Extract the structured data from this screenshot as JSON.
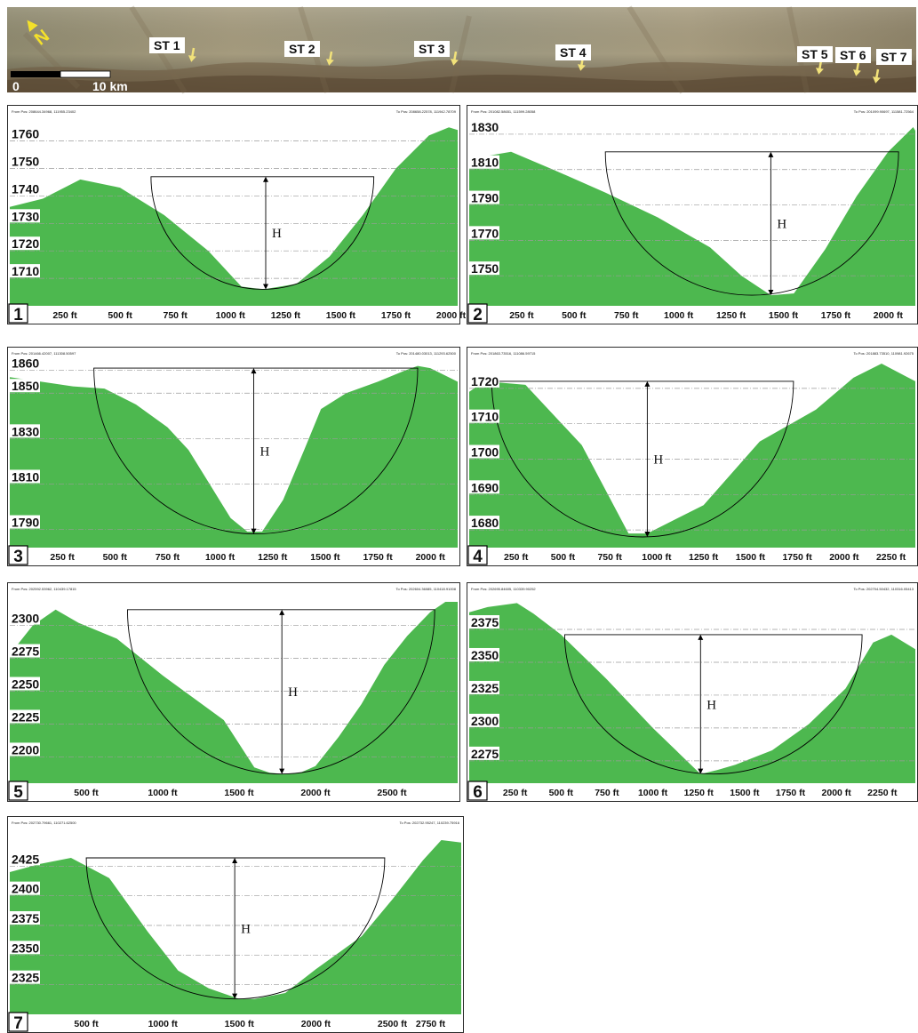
{
  "banner": {
    "scale_start": "0",
    "scale_end": "10 km",
    "north_label": "N",
    "colors": {
      "arrow": "#f2e27a",
      "north": "#f4e12a"
    },
    "stations": [
      "ST 1",
      "ST 2",
      "ST 3",
      "ST 4",
      "ST 5",
      "ST 6",
      "ST 7"
    ]
  },
  "colors": {
    "terrain": "#4db84f",
    "grid": "#9a9a9a"
  },
  "chart_data": [
    {
      "type": "area",
      "panel": "1",
      "h_label": "H",
      "from_pos": "From Pos: 208644.34968, 111955.23402",
      "to_pos": "To Pos: 208658.22578, 111942.78709",
      "xlim": [
        0,
        2030
      ],
      "ylim": [
        1700,
        1767
      ],
      "yticks": [
        1710,
        1720,
        1730,
        1740,
        1750,
        1760
      ],
      "xticks": [
        250,
        500,
        750,
        1000,
        1250,
        1500,
        1750,
        2000
      ],
      "xtick_labels": [
        "250 ft",
        "500 ft",
        "750 ft",
        "1000 ft",
        "1250 ft",
        "1500 ft",
        "1750 ft",
        "2000 ft"
      ],
      "x": [
        0,
        150,
        320,
        500,
        700,
        900,
        1050,
        1150,
        1300,
        1450,
        1600,
        1750,
        1900,
        1990,
        2030
      ],
      "y": [
        1736,
        1739,
        1746,
        1743,
        1733,
        1720,
        1707,
        1706,
        1708,
        1718,
        1733,
        1750,
        1762,
        1765,
        1764
      ],
      "bowl": {
        "x_left": 640,
        "x_right": 1650,
        "top": 1747,
        "bottom": 1706,
        "h_x": 1160
      }
    },
    {
      "type": "area",
      "panel": "2",
      "h_label": "H",
      "from_pos": "From Pos: 201082.58651, 111599.28058",
      "to_pos": "To Pos: 201099.90697, 111581.72564",
      "xlim": [
        0,
        2130
      ],
      "ylim": [
        1733,
        1837
      ],
      "yticks": [
        1750,
        1770,
        1790,
        1810,
        1830
      ],
      "xticks": [
        250,
        500,
        750,
        1000,
        1250,
        1500,
        1750,
        2000
      ],
      "xtick_labels": [
        "250 ft",
        "500 ft",
        "750 ft",
        "1000 ft",
        "1250 ft",
        "1500 ft",
        "1750 ft",
        "2000 ft"
      ],
      "x": [
        0,
        100,
        200,
        400,
        650,
        900,
        1150,
        1300,
        1440,
        1550,
        1700,
        1850,
        2000,
        2120,
        2130
      ],
      "y": [
        1813,
        1818,
        1820,
        1810,
        1797,
        1783,
        1766,
        1750,
        1739,
        1740,
        1765,
        1795,
        1820,
        1834,
        1832
      ],
      "bowl": {
        "x_left": 650,
        "x_right": 2050,
        "top": 1820,
        "bottom": 1739,
        "h_x": 1440
      }
    },
    {
      "type": "area",
      "panel": "3",
      "h_label": "H",
      "from_pos": "From Pos: 201466.42007, 111308.50597",
      "to_pos": "To Pos: 201480.03013, 111293.62500",
      "xlim": [
        0,
        2130
      ],
      "ylim": [
        1782,
        1863
      ],
      "yticks": [
        1790,
        1810,
        1830,
        1850,
        1860
      ],
      "xticks": [
        250,
        500,
        750,
        1000,
        1250,
        1500,
        1750,
        2000
      ],
      "xtick_labels": [
        "250 ft",
        "500 ft",
        "750 ft",
        "1000 ft",
        "1250 ft",
        "1500 ft",
        "1750 ft",
        "2000 ft"
      ],
      "x": [
        0,
        150,
        300,
        450,
        600,
        750,
        850,
        950,
        1050,
        1130,
        1200,
        1300,
        1400,
        1480,
        1600,
        1750,
        1880,
        1940,
        2000,
        2130
      ],
      "y": [
        1857,
        1855,
        1853,
        1852,
        1845,
        1835,
        1825,
        1810,
        1795,
        1789,
        1789,
        1803,
        1825,
        1843,
        1850,
        1855,
        1860,
        1862,
        1861,
        1855
      ],
      "bowl": {
        "x_left": 400,
        "x_right": 1940,
        "top": 1861,
        "bottom": 1788,
        "h_x": 1160
      }
    },
    {
      "type": "area",
      "panel": "4",
      "h_label": "H",
      "from_pos": "From Pos: 201863.73516, 111086.59715",
      "to_pos": "To Pos: 201883.73510, 110981.92675",
      "xlim": [
        0,
        2380
      ],
      "ylim": [
        1675,
        1727
      ],
      "yticks": [
        1680,
        1690,
        1700,
        1710,
        1720
      ],
      "xticks": [
        250,
        500,
        750,
        1000,
        1250,
        1500,
        1750,
        2000,
        2250
      ],
      "xtick_labels": [
        "250 ft",
        "500 ft",
        "750 ft",
        "1000 ft",
        "1250 ft",
        "1500 ft",
        "1750 ft",
        "2000 ft",
        "2250 ft"
      ],
      "x": [
        0,
        80,
        300,
        600,
        850,
        950,
        1250,
        1550,
        1850,
        2050,
        2200,
        2380
      ],
      "y": [
        1719,
        1722,
        1721,
        1704,
        1679,
        1679,
        1687,
        1705,
        1714,
        1723,
        1727,
        1722
      ],
      "bowl": {
        "x_left": 120,
        "x_right": 1730,
        "top": 1722,
        "bottom": 1678,
        "h_x": 950
      }
    },
    {
      "type": "area",
      "panel": "5",
      "h_label": "H",
      "from_pos": "From Pos: 202592.53962, 110439.17815",
      "to_pos": "To Pos: 202604.36085, 110418.91008",
      "xlim": [
        0,
        2930
      ],
      "ylim": [
        2180,
        2320
      ],
      "yticks": [
        2200,
        2225,
        2250,
        2275,
        2300
      ],
      "xticks": [
        500,
        1000,
        1500,
        2000,
        2500
      ],
      "xtick_labels": [
        "500 ft",
        "1000 ft",
        "1500 ft",
        "2000 ft",
        "2500 ft"
      ],
      "x": [
        0,
        150,
        300,
        450,
        700,
        1000,
        1200,
        1400,
        1500,
        1600,
        1700,
        1800,
        1900,
        2000,
        2150,
        2300,
        2450,
        2600,
        2750,
        2850,
        2930
      ],
      "y": [
        2278,
        2300,
        2312,
        2302,
        2290,
        2262,
        2245,
        2228,
        2210,
        2192,
        2188,
        2187,
        2188,
        2193,
        2215,
        2240,
        2270,
        2292,
        2310,
        2318,
        2318
      ],
      "bowl": {
        "x_left": 770,
        "x_right": 2780,
        "top": 2312,
        "bottom": 2187,
        "h_x": 1780
      }
    },
    {
      "type": "area",
      "panel": "6",
      "h_label": "H",
      "from_pos": "From Pos: 202695.84605, 110339.90252",
      "to_pos": "To Pos: 202704.50432, 110316.05413",
      "xlim": [
        0,
        2430
      ],
      "ylim": [
        2258,
        2398
      ],
      "yticks": [
        2275,
        2300,
        2325,
        2350,
        2375
      ],
      "xticks": [
        250,
        500,
        750,
        1000,
        1250,
        1500,
        1750,
        2000,
        2250
      ],
      "xtick_labels": [
        "250 ft",
        "500 ft",
        "750 ft",
        "1000 ft",
        "1250 ft",
        "1500 ft",
        "1750 ft",
        "2000 ft",
        "2250 ft"
      ],
      "x": [
        0,
        100,
        260,
        350,
        500,
        750,
        1000,
        1260,
        1350,
        1450,
        1650,
        1850,
        2050,
        2200,
        2300,
        2430
      ],
      "y": [
        2388,
        2392,
        2395,
        2387,
        2371,
        2337,
        2300,
        2265,
        2268,
        2272,
        2283,
        2303,
        2330,
        2365,
        2371,
        2360
      ],
      "bowl": {
        "x_left": 520,
        "x_right": 2140,
        "top": 2371,
        "bottom": 2265,
        "h_x": 1260
      }
    },
    {
      "type": "area",
      "panel": "7",
      "h_label": "H",
      "from_pos": "From Pos: 202730.79661, 110271.62500",
      "to_pos": "To Pos: 202732.95247, 110239.75916",
      "xlim": [
        0,
        2950
      ],
      "ylim": [
        2300,
        2453
      ],
      "yticks": [
        2325,
        2350,
        2375,
        2400,
        2425
      ],
      "xticks": [
        500,
        1000,
        1500,
        2000,
        2500,
        2750
      ],
      "xtick_labels": [
        "500 ft",
        "1000 ft",
        "1500 ft",
        "2000 ft",
        "2500 ft",
        "2750 ft"
      ],
      "x": [
        0,
        200,
        400,
        650,
        900,
        1100,
        1300,
        1500,
        1600,
        1800,
        2000,
        2300,
        2500,
        2700,
        2820,
        2950
      ],
      "y": [
        2420,
        2427,
        2432,
        2415,
        2370,
        2337,
        2322,
        2313,
        2313,
        2318,
        2338,
        2366,
        2397,
        2430,
        2447,
        2445
      ],
      "bowl": {
        "x_left": 500,
        "x_right": 2450,
        "top": 2432,
        "bottom": 2313,
        "h_x": 1470
      }
    }
  ]
}
